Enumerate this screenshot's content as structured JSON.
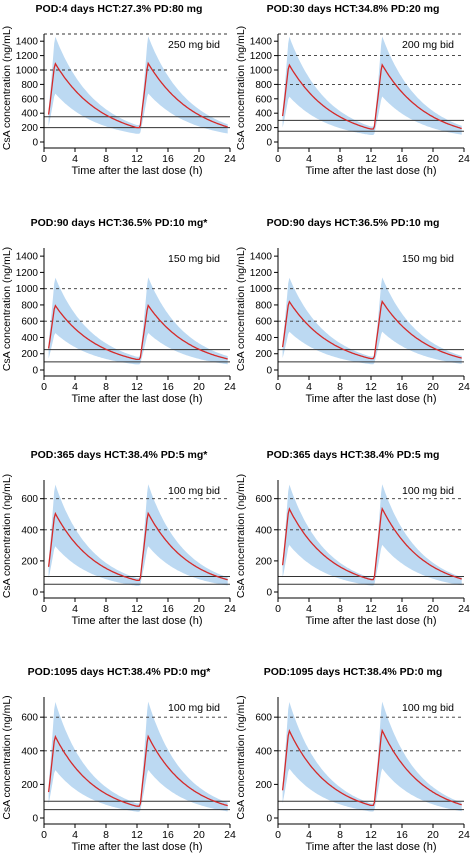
{
  "chart_data": [
    {
      "type": "line",
      "title": "POD:4 days HCT:27.3% PD:80 mg",
      "annotation": "250 mg bid",
      "xlabel": "Time after the last dose (h)",
      "ylabel": "CsA concentration (ng/mL)",
      "xlim": [
        0,
        24
      ],
      "ylim": [
        0,
        1500
      ],
      "xticks": [
        0,
        4,
        8,
        12,
        16,
        20,
        24
      ],
      "yticks": [
        0,
        200,
        400,
        600,
        800,
        1000,
        1200,
        1400
      ],
      "dashed_lines": [
        1000,
        1500
      ],
      "solid_lines": [
        200,
        350
      ],
      "peak": 1100,
      "trough": 200,
      "band_upper_peak": 1480,
      "band_lower_peak": 800,
      "band_lower_trough": 80
    },
    {
      "type": "line",
      "title": "POD:30 days HCT:34.8% PD:20 mg",
      "annotation": "200 mg bid",
      "xlabel": "Time after the last dose (h)",
      "ylabel": "CsA concentration (ng/mL)",
      "xlim": [
        0,
        24
      ],
      "ylim": [
        0,
        1500
      ],
      "xticks": [
        0,
        4,
        8,
        12,
        16,
        20,
        24
      ],
      "yticks": [
        0,
        200,
        400,
        600,
        800,
        1000,
        1200,
        1400
      ],
      "dashed_lines": [
        800,
        1200,
        1500
      ],
      "solid_lines": [
        150,
        300
      ],
      "peak": 1080,
      "trough": 180,
      "band_upper_peak": 1480,
      "band_lower_peak": 750,
      "band_lower_trough": 70
    },
    {
      "type": "line",
      "title": "POD:90 days HCT:36.5% PD:10 mg*",
      "annotation": "150 mg bid",
      "xlabel": "Time after the last dose (h)",
      "ylabel": "CsA concentration (ng/mL)",
      "xlim": [
        0,
        24
      ],
      "ylim": [
        0,
        1500
      ],
      "xticks": [
        0,
        4,
        8,
        12,
        16,
        20,
        24
      ],
      "yticks": [
        0,
        200,
        400,
        600,
        800,
        1000,
        1200,
        1400
      ],
      "dashed_lines": [
        600,
        1000
      ],
      "solid_lines": [
        100,
        250
      ],
      "peak": 800,
      "trough": 130,
      "band_upper_peak": 1150,
      "band_lower_peak": 540,
      "band_lower_trough": 50
    },
    {
      "type": "line",
      "title": "POD:90 days HCT:36.5% PD:10 mg",
      "annotation": "150 mg bid",
      "xlabel": "Time after the last dose (h)",
      "ylabel": "CsA concentration (ng/mL)",
      "xlim": [
        0,
        24
      ],
      "ylim": [
        0,
        1500
      ],
      "xticks": [
        0,
        4,
        8,
        12,
        16,
        20,
        24
      ],
      "yticks": [
        0,
        200,
        400,
        600,
        800,
        1000,
        1200,
        1400
      ],
      "dashed_lines": [
        600,
        1000
      ],
      "solid_lines": [
        100,
        250
      ],
      "peak": 850,
      "trough": 140,
      "band_upper_peak": 1150,
      "band_lower_peak": 560,
      "band_lower_trough": 50
    },
    {
      "type": "line",
      "title": "POD:365 days HCT:38.4% PD:5 mg*",
      "annotation": "100 mg bid",
      "xlabel": "Time after the last dose (h)",
      "ylabel": "CsA concentration (ng/mL)",
      "xlim": [
        0,
        24
      ],
      "ylim": [
        0,
        720
      ],
      "xticks": [
        0,
        4,
        8,
        12,
        16,
        20,
        24
      ],
      "yticks": [
        0,
        200,
        400,
        600
      ],
      "dashed_lines": [
        400,
        600
      ],
      "solid_lines": [
        50,
        100
      ],
      "peak": 510,
      "trough": 75,
      "band_upper_peak": 700,
      "band_lower_peak": 350,
      "band_lower_trough": 30
    },
    {
      "type": "line",
      "title": "POD:365 days HCT:38.4% PD:5 mg",
      "annotation": "100 mg bid",
      "xlabel": "Time after the last dose (h)",
      "ylabel": "CsA concentration (ng/mL)",
      "xlim": [
        0,
        24
      ],
      "ylim": [
        0,
        720
      ],
      "xticks": [
        0,
        4,
        8,
        12,
        16,
        20,
        24
      ],
      "yticks": [
        0,
        200,
        400,
        600
      ],
      "dashed_lines": [
        400,
        600
      ],
      "solid_lines": [
        50,
        100
      ],
      "peak": 540,
      "trough": 80,
      "band_upper_peak": 700,
      "band_lower_peak": 360,
      "band_lower_trough": 30
    },
    {
      "type": "line",
      "title": "POD:1095 days HCT:38.4% PD:0 mg*",
      "annotation": "100 mg bid",
      "xlabel": "Time after the last dose (h)",
      "ylabel": "CsA concentration (ng/mL)",
      "xlim": [
        0,
        24
      ],
      "ylim": [
        0,
        720
      ],
      "xticks": [
        0,
        4,
        8,
        12,
        16,
        20,
        24
      ],
      "yticks": [
        0,
        200,
        400,
        600
      ],
      "dashed_lines": [
        400,
        600
      ],
      "solid_lines": [
        50,
        100
      ],
      "peak": 490,
      "trough": 70,
      "band_upper_peak": 700,
      "band_lower_peak": 340,
      "band_lower_trough": 25
    },
    {
      "type": "line",
      "title": "POD:1095 days HCT:38.4% PD:0 mg",
      "annotation": "100 mg bid",
      "xlabel": "Time after the last dose (h)",
      "ylabel": "CsA concentration (ng/mL)",
      "xlim": [
        0,
        24
      ],
      "ylim": [
        0,
        720
      ],
      "xticks": [
        0,
        4,
        8,
        12,
        16,
        20,
        24
      ],
      "yticks": [
        0,
        200,
        400,
        600
      ],
      "dashed_lines": [
        400,
        600
      ],
      "solid_lines": [
        50,
        100
      ],
      "peak": 525,
      "trough": 75,
      "band_upper_peak": 700,
      "band_lower_peak": 350,
      "band_lower_trough": 30
    }
  ],
  "colors": {
    "band": "#bcd9f2",
    "median_line": "#d42a2a",
    "ref_line": "#333333",
    "axis": "#000000",
    "text": "#000000"
  }
}
